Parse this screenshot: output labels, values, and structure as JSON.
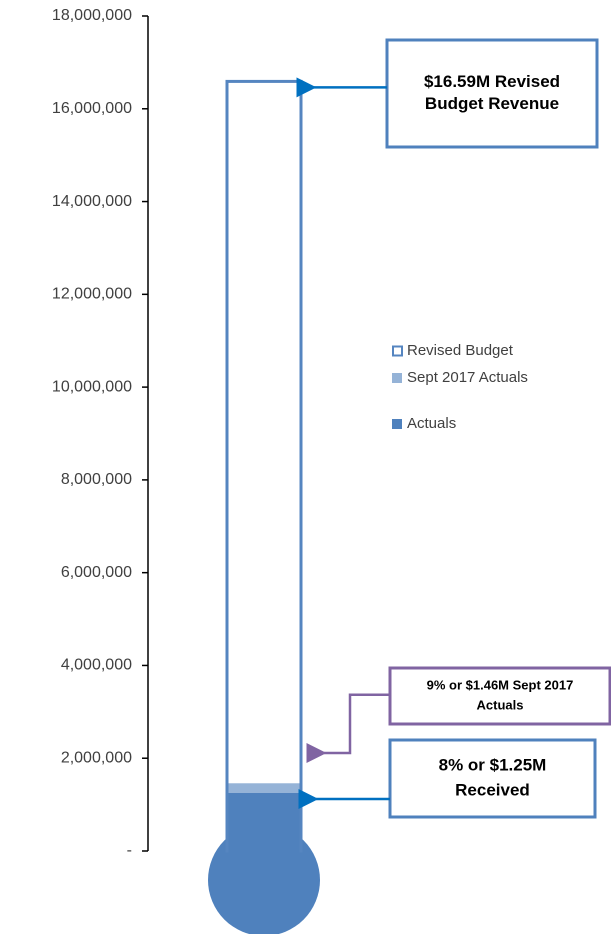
{
  "chart_data": {
    "type": "thermometer",
    "series": [
      {
        "name": "Revised Budget",
        "color": "#5585c0",
        "outline": true,
        "values": [
          16590000
        ]
      },
      {
        "name": "Sept 2017 Actuals",
        "color": "#95b3d7",
        "values": [
          1460000
        ]
      },
      {
        "name": "Actuals",
        "color": "#4f81bd",
        "values": [
          1250000
        ]
      }
    ],
    "ylim": [
      0,
      18000000
    ],
    "yticks": [
      {
        "value": 0,
        "label": "-"
      },
      {
        "value": 2000000,
        "label": "2,000,000"
      },
      {
        "value": 4000000,
        "label": "4,000,000"
      },
      {
        "value": 6000000,
        "label": "6,000,000"
      },
      {
        "value": 8000000,
        "label": "8,000,000"
      },
      {
        "value": 10000000,
        "label": "10,000,000"
      },
      {
        "value": 12000000,
        "label": "12,000,000"
      },
      {
        "value": 14000000,
        "label": "14,000,000"
      },
      {
        "value": 16000000,
        "label": "16,000,000"
      },
      {
        "value": 18000000,
        "label": "18,000,000"
      }
    ],
    "annotations": [
      {
        "lines": [
          "$16.59M Revised",
          "Budget Revenue"
        ],
        "color": "#4f81bd"
      },
      {
        "lines": [
          "9% or $1.46M Sept 2017",
          "Actuals"
        ],
        "color": "#8064a2"
      },
      {
        "lines": [
          "8% or $1.25M",
          "Received"
        ],
        "color": "#4f81bd"
      }
    ]
  }
}
